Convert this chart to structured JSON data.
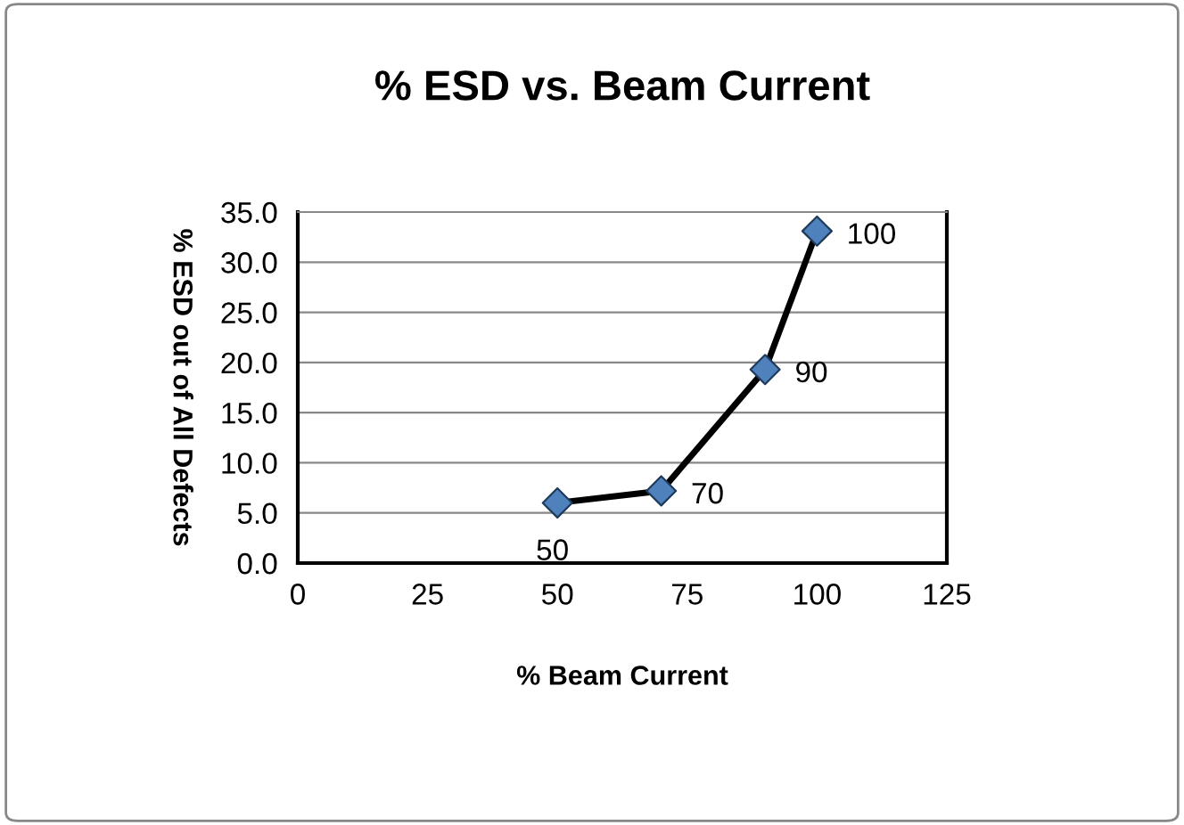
{
  "chart_data": {
    "type": "line",
    "title": "% ESD vs. Beam Current",
    "xlabel": "% Beam Current",
    "ylabel": "% ESD out of All Defects",
    "series": [
      {
        "color": "#000000",
        "colors": [
          "#4f81bd",
          "#4f81bd",
          "#4f81bd",
          "#4f81bd"
        ],
        "x": [
          50,
          70,
          90,
          100
        ],
        "values": [
          6.0,
          7.2,
          19.3,
          33.1
        ]
      }
    ],
    "annotations": [
      {
        "text": "50",
        "x": 50,
        "y": 6.0
      },
      {
        "text": "70",
        "x": 70,
        "y": 7.2
      },
      {
        "text": "90",
        "x": 90,
        "y": 19.3
      },
      {
        "text": "100",
        "x": 100,
        "y": 33.1
      }
    ],
    "xlim": [
      0,
      125
    ],
    "xticks": [
      0,
      25,
      50,
      75,
      100,
      125
    ],
    "ylim": [
      0,
      35
    ],
    "yticks": [
      {
        "value": 0,
        "label": "0.0"
      },
      {
        "value": 5,
        "label": "5.0"
      },
      {
        "value": 10,
        "label": "10.0"
      },
      {
        "value": 15,
        "label": "15.0"
      },
      {
        "value": 20,
        "label": "20.0"
      },
      {
        "value": 25,
        "label": "25.0"
      },
      {
        "value": 30,
        "label": "30.0"
      },
      {
        "value": 35,
        "label": "35.0"
      }
    ],
    "grid": "y",
    "marker": "diamond",
    "line_style": "solid",
    "legend": false
  }
}
